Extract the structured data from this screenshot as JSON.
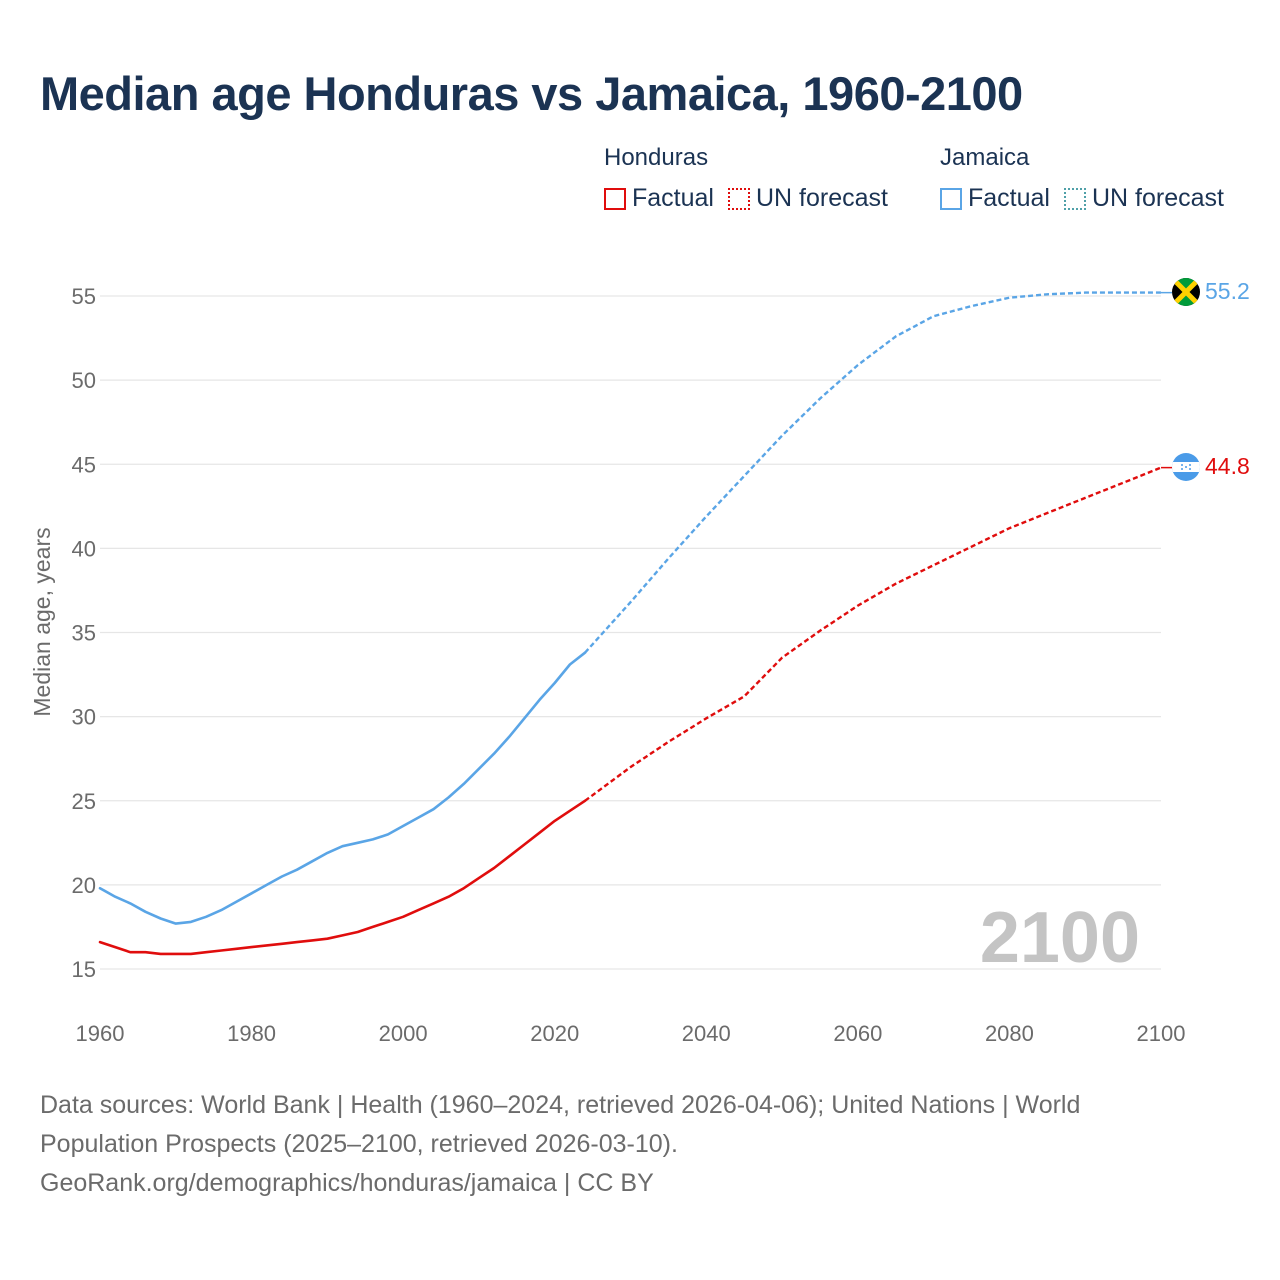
{
  "title": "Median age Honduras vs Jamaica, 1960-2100",
  "legend": {
    "honduras": {
      "name": "Honduras",
      "factual": "Factual",
      "forecast": "UN forecast"
    },
    "jamaica": {
      "name": "Jamaica",
      "factual": "Factual",
      "forecast": "UN forecast"
    }
  },
  "colors": {
    "honduras": "#e00d0d",
    "jamaica": "#5aa5e6",
    "title": "#1b3353",
    "grid": "#e6e6e6",
    "axis_text": "#6b6b6b",
    "year_watermark": "#c4c4c4"
  },
  "chart_data": {
    "type": "line",
    "title": "Median age Honduras vs Jamaica, 1960-2100",
    "xlabel": "",
    "ylabel": "Median age, years",
    "xlim": [
      1960,
      2100
    ],
    "ylim": [
      15,
      55
    ],
    "x_ticks": [
      1960,
      1980,
      2000,
      2020,
      2040,
      2060,
      2080,
      2100
    ],
    "y_ticks": [
      15,
      20,
      25,
      30,
      35,
      40,
      45,
      50,
      55
    ],
    "year_label": "2100",
    "factual_range": "1960–2024",
    "forecast_range": "2025–2100",
    "series": [
      {
        "name": "Honduras",
        "color": "#e00d0d",
        "end_label": "44.8",
        "factual": {
          "x": [
            1960,
            1962,
            1964,
            1966,
            1968,
            1970,
            1972,
            1974,
            1976,
            1978,
            1980,
            1982,
            1984,
            1986,
            1988,
            1990,
            1992,
            1994,
            1996,
            1998,
            2000,
            2002,
            2004,
            2006,
            2008,
            2010,
            2012,
            2014,
            2016,
            2018,
            2020,
            2022,
            2024
          ],
          "y": [
            16.6,
            16.3,
            16.0,
            16.0,
            15.9,
            15.9,
            15.9,
            16.0,
            16.1,
            16.2,
            16.3,
            16.4,
            16.5,
            16.6,
            16.7,
            16.8,
            17.0,
            17.2,
            17.5,
            17.8,
            18.1,
            18.5,
            18.9,
            19.3,
            19.8,
            20.4,
            21.0,
            21.7,
            22.4,
            23.1,
            23.8,
            24.4,
            25.0
          ]
        },
        "forecast": {
          "x": [
            2024,
            2030,
            2035,
            2040,
            2045,
            2050,
            2055,
            2060,
            2065,
            2070,
            2075,
            2080,
            2085,
            2090,
            2095,
            2100
          ],
          "y": [
            25.0,
            27.0,
            28.5,
            29.9,
            31.2,
            33.5,
            35.1,
            36.6,
            37.9,
            39.0,
            40.1,
            41.2,
            42.1,
            43.0,
            43.9,
            44.8
          ]
        }
      },
      {
        "name": "Jamaica",
        "color": "#5aa5e6",
        "end_label": "55.2",
        "factual": {
          "x": [
            1960,
            1962,
            1964,
            1966,
            1968,
            1970,
            1972,
            1974,
            1976,
            1978,
            1980,
            1982,
            1984,
            1986,
            1988,
            1990,
            1992,
            1994,
            1996,
            1998,
            2000,
            2002,
            2004,
            2006,
            2008,
            2010,
            2012,
            2014,
            2016,
            2018,
            2020,
            2022,
            2024
          ],
          "y": [
            19.8,
            19.3,
            18.9,
            18.4,
            18.0,
            17.7,
            17.8,
            18.1,
            18.5,
            19.0,
            19.5,
            20.0,
            20.5,
            20.9,
            21.4,
            21.9,
            22.3,
            22.5,
            22.7,
            23.0,
            23.5,
            24.0,
            24.5,
            25.2,
            26.0,
            26.9,
            27.8,
            28.8,
            29.9,
            31.0,
            32.0,
            33.1,
            33.8
          ]
        },
        "forecast": {
          "x": [
            2024,
            2030,
            2035,
            2040,
            2045,
            2050,
            2055,
            2060,
            2065,
            2070,
            2075,
            2080,
            2085,
            2090,
            2095,
            2100
          ],
          "y": [
            33.8,
            36.8,
            39.4,
            41.9,
            44.3,
            46.7,
            48.9,
            50.9,
            52.6,
            53.8,
            54.4,
            54.9,
            55.1,
            55.2,
            55.2,
            55.2
          ]
        }
      }
    ]
  },
  "footer": {
    "sources": "Data sources: World Bank | Health (1960–2024, retrieved 2026-04-06); United Nations | World Population Prospects (2025–2100, retrieved 2026-03-10).",
    "attribution": "GeoRank.org/demographics/honduras/jamaica | CC BY"
  }
}
